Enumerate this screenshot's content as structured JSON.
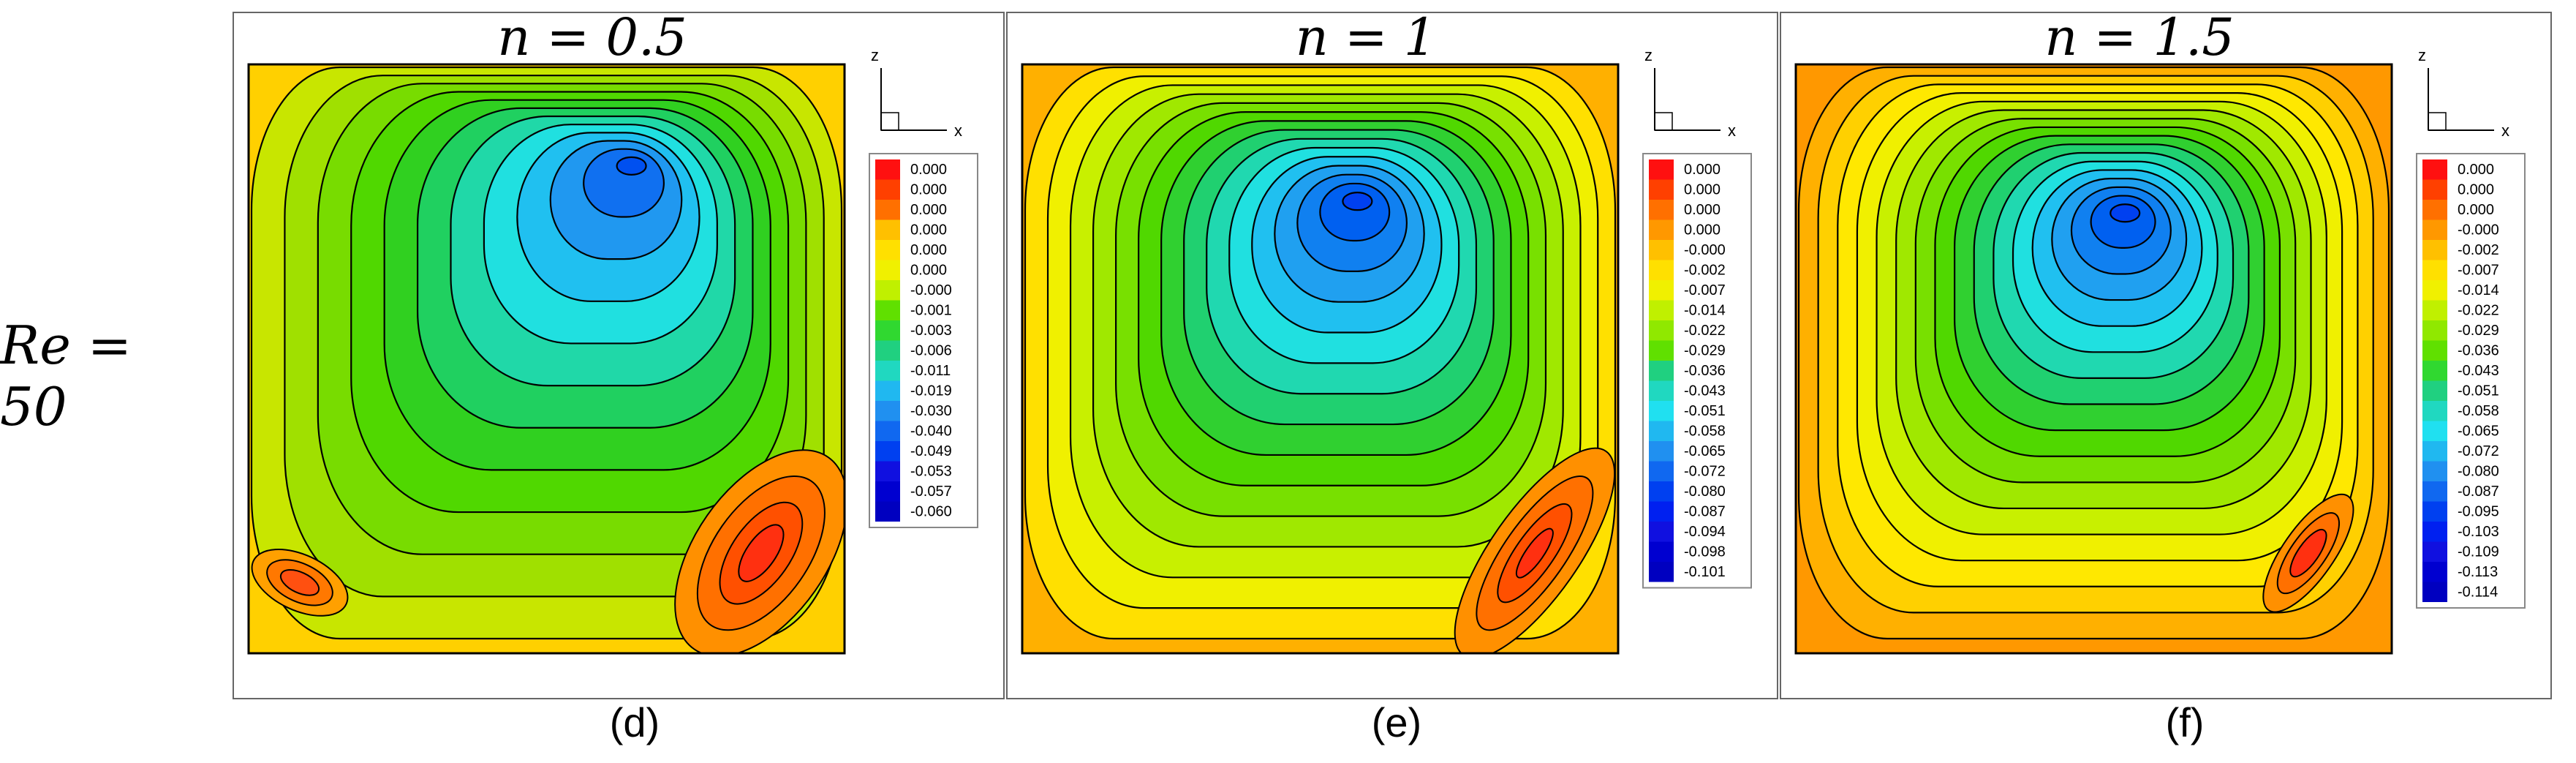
{
  "row_label": "Re = 50",
  "panels": [
    {
      "title": "n = 0.5",
      "caption": "(d)",
      "axis": {
        "z": "z",
        "x": "x"
      },
      "colorbar": [
        "0.000",
        "0.000",
        "0.000",
        "0.000",
        "0.000",
        "0.000",
        "-0.000",
        "-0.001",
        "-0.003",
        "-0.006",
        "-0.011",
        "-0.019",
        "-0.030",
        "-0.040",
        "-0.049",
        "-0.053",
        "-0.057",
        "-0.060"
      ],
      "background_color": "#ffd000",
      "ring_colors": [
        "#c8e600",
        "#a0e000",
        "#78dc00",
        "#50d800",
        "#30d020",
        "#20d060",
        "#20d8a8",
        "#20e0e0",
        "#20c0f0",
        "#2098f0",
        "#1070f0",
        "#0050f0"
      ],
      "vortex_color": "#ff3010"
    },
    {
      "title": "n = 1",
      "caption": "(e)",
      "axis": {
        "z": "z",
        "x": "x"
      },
      "colorbar": [
        "0.000",
        "0.000",
        "0.000",
        "0.000",
        "-0.000",
        "-0.002",
        "-0.007",
        "-0.014",
        "-0.022",
        "-0.029",
        "-0.036",
        "-0.043",
        "-0.051",
        "-0.058",
        "-0.065",
        "-0.072",
        "-0.080",
        "-0.087",
        "-0.094",
        "-0.098",
        "-0.101"
      ],
      "background_color": "#ffb000",
      "ring_colors": [
        "#ffe000",
        "#f0f000",
        "#c8f000",
        "#a0e800",
        "#78e000",
        "#50d800",
        "#30d030",
        "#20d070",
        "#20d8b0",
        "#20e0e0",
        "#20c0f0",
        "#20a0f0",
        "#1080f0",
        "#0060f0",
        "#0040f0"
      ],
      "vortex_color": "#ff3010"
    },
    {
      "title": "n = 1.5",
      "caption": "(f)",
      "axis": {
        "z": "z",
        "x": "x"
      },
      "colorbar": [
        "0.000",
        "0.000",
        "0.000",
        "-0.000",
        "-0.002",
        "-0.007",
        "-0.014",
        "-0.022",
        "-0.029",
        "-0.036",
        "-0.043",
        "-0.051",
        "-0.058",
        "-0.065",
        "-0.072",
        "-0.080",
        "-0.087",
        "-0.095",
        "-0.103",
        "-0.109",
        "-0.113",
        "-0.114"
      ],
      "background_color": "#ff9800",
      "ring_colors": [
        "#ffb000",
        "#ffd000",
        "#ffe800",
        "#f0f000",
        "#c8f000",
        "#a0e800",
        "#78e000",
        "#50d800",
        "#30d030",
        "#20d070",
        "#20d8b0",
        "#20e0e0",
        "#20c0f0",
        "#20a0f0",
        "#1080f0",
        "#0060f0",
        "#0040f0"
      ],
      "vortex_color": "#ff3010"
    }
  ],
  "colorbar_colors": [
    "#ff1010",
    "#ff4000",
    "#ff7000",
    "#ff9800",
    "#ffc000",
    "#ffe000",
    "#f0f000",
    "#c0f000",
    "#90e800",
    "#60e000",
    "#30d830",
    "#20d080",
    "#20d8c0",
    "#20e0f0",
    "#20b8f0",
    "#2090f0",
    "#1068f0",
    "#0040f0",
    "#0020f0",
    "#1010e0",
    "#0000d0",
    "#0000c0"
  ]
}
